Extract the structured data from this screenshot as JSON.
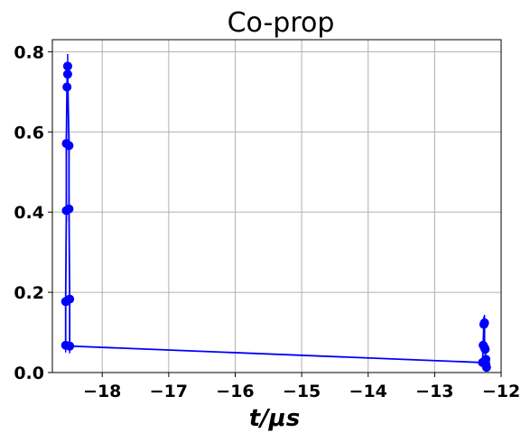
{
  "chart_data": {
    "type": "line",
    "title": "Co-prop",
    "xlabel": "t/μs",
    "ylabel": "",
    "xlim": [
      -18.75,
      -12.0
    ],
    "ylim": [
      0.0,
      0.83
    ],
    "xticks": [
      -18,
      -17,
      -16,
      -15,
      -14,
      -13,
      -12
    ],
    "xtick_labels": [
      "−18",
      "−17",
      "−16",
      "−15",
      "−14",
      "−13",
      "−12"
    ],
    "yticks": [
      0.0,
      0.2,
      0.4,
      0.6,
      0.8
    ],
    "ytick_labels": [
      "0.0",
      "0.2",
      "0.4",
      "0.6",
      "0.8"
    ],
    "grid": true,
    "legend": "none",
    "color": "#0000ff",
    "series": [
      {
        "points": [
          [
            -18.55,
            0.068
          ],
          [
            -18.55,
            0.177
          ],
          [
            -18.54,
            0.404
          ],
          [
            -18.54,
            0.571
          ],
          [
            -18.53,
            0.712
          ],
          [
            -18.52,
            0.764
          ],
          [
            -18.52,
            0.744
          ],
          [
            -18.5,
            0.566
          ],
          [
            -18.5,
            0.408
          ],
          [
            -18.49,
            0.183
          ],
          [
            -18.49,
            0.066
          ],
          [
            -12.28,
            0.025
          ],
          [
            -12.27,
            0.068
          ],
          [
            -12.26,
            0.12
          ],
          [
            -12.25,
            0.124
          ],
          [
            -12.25,
            0.062
          ],
          [
            -12.24,
            0.058
          ],
          [
            -12.23,
            0.033
          ],
          [
            -12.23,
            0.021
          ],
          [
            -12.22,
            0.013
          ]
        ],
        "errors": [
          0.018,
          0.022,
          0.028,
          0.025,
          0.03,
          0.03,
          0.03,
          0.028,
          0.03,
          0.022,
          0.018,
          0.01,
          0.012,
          0.02,
          0.02,
          0.012,
          0.012,
          0.008,
          0.008,
          0.006
        ]
      }
    ]
  }
}
